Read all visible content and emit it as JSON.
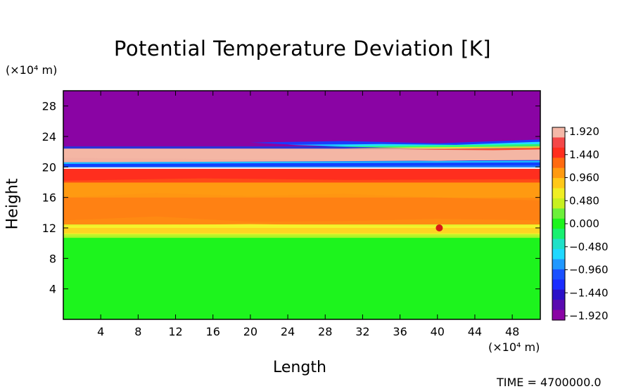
{
  "chart_data": {
    "type": "heatmap",
    "title": "Potential Temperature Deviation [K]",
    "xlabel": "Length",
    "ylabel": "Height",
    "x_unit": "(×10⁴ m)",
    "y_unit": "(×10⁴ m)",
    "xlim": [
      0,
      51
    ],
    "ylim": [
      0,
      30
    ],
    "x_ticks": [
      4,
      8,
      12,
      16,
      20,
      24,
      28,
      32,
      36,
      40,
      44,
      48
    ],
    "y_ticks": [
      4,
      8,
      12,
      16,
      20,
      24,
      28
    ],
    "colorbar": {
      "range": [
        -1.92,
        1.92
      ],
      "ticks": [
        "1.920",
        "1.440",
        "0.960",
        "0.480",
        "0.000",
        "−0.480",
        "−0.960",
        "−1.440",
        "−1.920"
      ]
    },
    "layers": [
      {
        "z": [
          0,
          11
        ],
        "value": 0.0,
        "color": "#1df41d"
      },
      {
        "z": [
          11,
          12.5
        ],
        "value": 0.45,
        "color": "#e6f02a"
      },
      {
        "z": [
          12.5,
          16
        ],
        "value": 0.9,
        "color": "#ff8a12"
      },
      {
        "z": [
          16,
          18
        ],
        "value": 0.85,
        "color": "#ff9a10"
      },
      {
        "z": [
          18,
          19.8
        ],
        "value": 1.3,
        "color": "#ff4a18"
      },
      {
        "z": [
          19.8,
          20.5
        ],
        "value": -0.9,
        "color": "#1a78ff"
      },
      {
        "z": [
          20.5,
          22.5
        ],
        "value": 1.85,
        "color": "#f2b2a2"
      },
      {
        "z": [
          22.5,
          30
        ],
        "value": -1.92,
        "color": "#8a04a4"
      }
    ],
    "time_label": "TIME = 4700000.0"
  },
  "colors": {
    "purple": "#8a04a4",
    "pink": "#f2b2a2",
    "red": "#ff3a1e",
    "orange": "#ff8a12",
    "yellow": "#f0ee24",
    "green": "#1df41d",
    "blue": "#1a50ff"
  }
}
